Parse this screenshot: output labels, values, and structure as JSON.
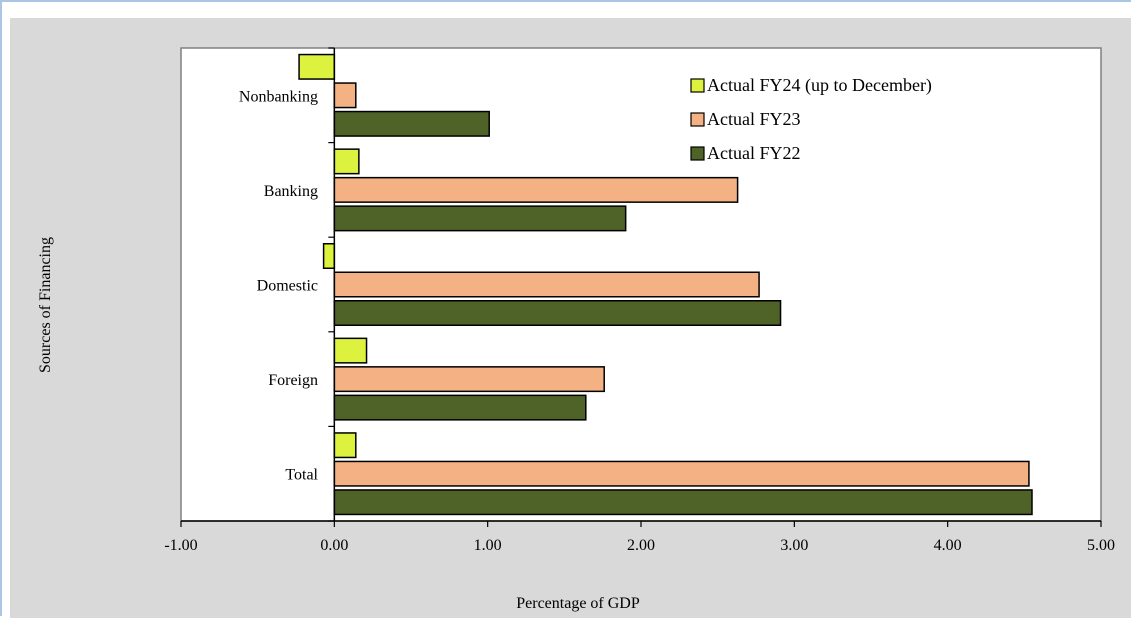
{
  "chart_data": {
    "type": "bar",
    "orientation": "horizontal",
    "categories": [
      "Nonbanking",
      "Banking",
      "Domestic",
      "Foreign",
      "Total"
    ],
    "series": [
      {
        "name": "Actual FY24 (up to December)",
        "color": "#ddf23f",
        "values": [
          -0.23,
          0.16,
          -0.07,
          0.21,
          0.14
        ]
      },
      {
        "name": "Actual FY23",
        "color": "#f4b183",
        "values": [
          0.14,
          2.63,
          2.77,
          1.76,
          4.53
        ]
      },
      {
        "name": "Actual FY22",
        "color": "#4f6228",
        "values": [
          1.01,
          1.9,
          2.91,
          1.64,
          4.55
        ]
      }
    ],
    "xlabel": "Percentage of  GDP",
    "ylabel": "Sources of Financing",
    "xlim": [
      -1.0,
      5.0
    ],
    "xticks": [
      "-1.00",
      "0.00",
      "1.00",
      "2.00",
      "3.00",
      "4.00",
      "5.00"
    ],
    "legend_position": "top-right",
    "grid": false
  }
}
